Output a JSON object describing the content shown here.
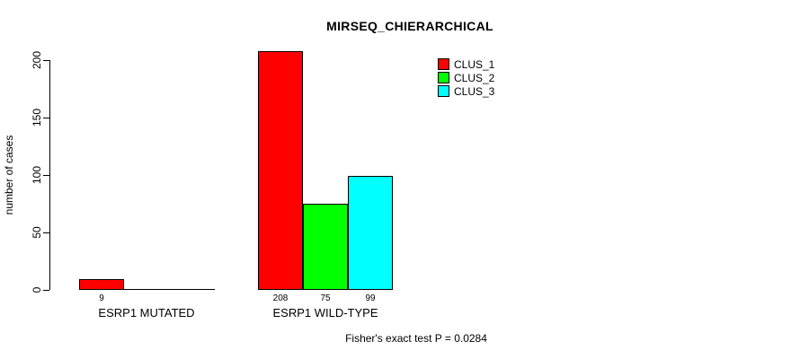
{
  "chart_data": {
    "type": "bar",
    "title": "MIRSEQ_CHIERARCHICAL",
    "ylabel": "number of cases",
    "xlabel": "",
    "categories": [
      "ESRP1 MUTATED",
      "ESRP1 WILD-TYPE"
    ],
    "series": [
      {
        "name": "CLUS_1",
        "color": "#ff0000",
        "values": [
          9,
          208
        ]
      },
      {
        "name": "CLUS_2",
        "color": "#00ff00",
        "values": [
          0,
          75
        ]
      },
      {
        "name": "CLUS_3",
        "color": "#00ffff",
        "values": [
          0,
          99
        ]
      }
    ],
    "bar_value_labels": [
      [
        "9",
        "",
        ""
      ],
      [
        "208",
        "75",
        "99"
      ]
    ],
    "yticks": [
      0,
      50,
      100,
      150,
      200
    ],
    "ytick_labels": [
      "0",
      "50",
      "100",
      "150",
      "200"
    ],
    "ylim": [
      0,
      208
    ],
    "grid": false,
    "legend_position": "top-right",
    "annotation": "Fisher's exact test P = 0.0284",
    "colors": {
      "bar_border": "#000000",
      "axis": "#000000",
      "text": "#000000",
      "background": "#ffffff"
    }
  }
}
